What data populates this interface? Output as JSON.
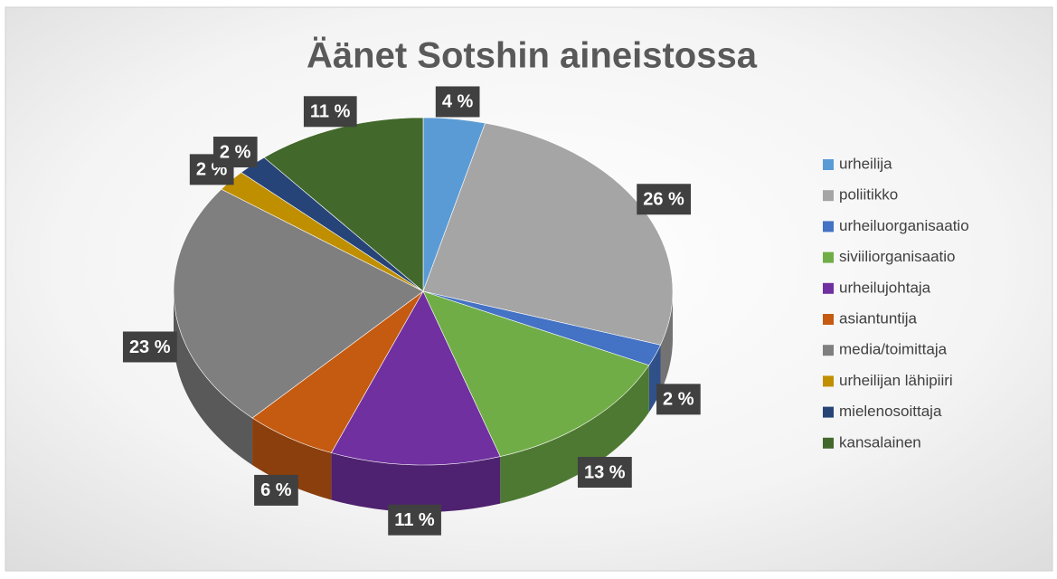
{
  "chart_data": {
    "type": "pie",
    "title": "Äänet Sotshin aineistossa",
    "categories": [
      "urheilija",
      "poliitikko",
      "urheiluorganisaatio",
      "siviiliorganisaatio",
      "urheilujohtaja",
      "asiantuntija",
      "media/toimittaja",
      "urheilijan lähipiiri",
      "mielenosoittaja",
      "kansalainen"
    ],
    "values": [
      4,
      26,
      2,
      13,
      11,
      6,
      23,
      2,
      2,
      11
    ],
    "value_labels": [
      "4 %",
      "26 %",
      "2 %",
      "13 %",
      "11 %",
      "6 %",
      "23 %",
      "2 %",
      "2 %",
      "11 %"
    ],
    "colors": [
      "#5b9bd5",
      "#a5a5a5",
      "#4472c4",
      "#70ad47",
      "#7030a0",
      "#c55a11",
      "#7f7f7f",
      "#bf8f00",
      "#264478",
      "#43682b"
    ],
    "legend": "right"
  }
}
